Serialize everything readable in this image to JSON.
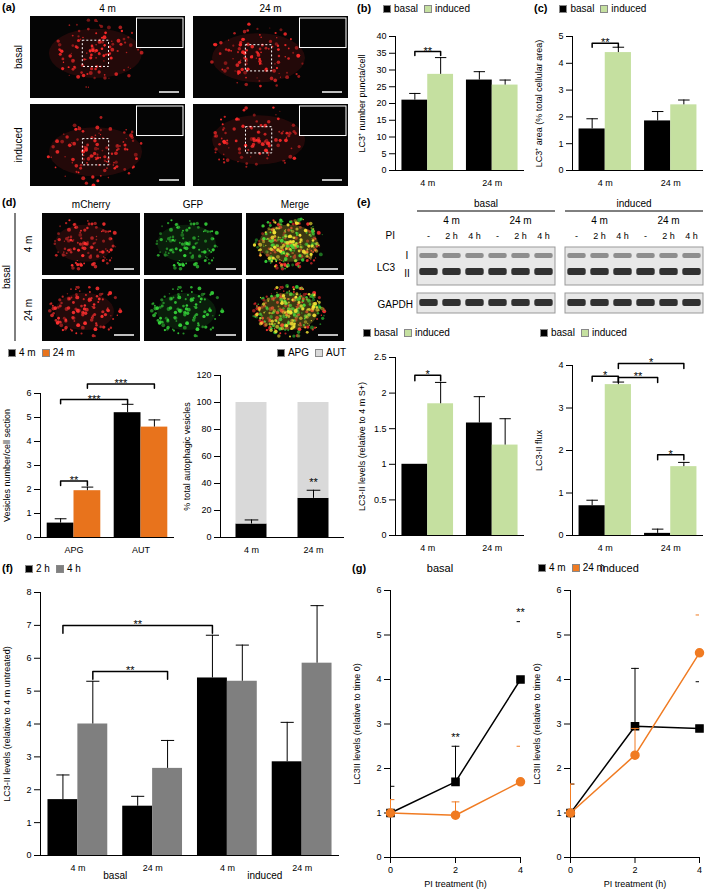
{
  "images_a": {
    "panel": "(a)",
    "columns": [
      "4 m",
      "24 m"
    ],
    "rows": [
      "basal",
      "induced"
    ]
  },
  "images_d": {
    "panel": "(d)",
    "group": "basal",
    "columns": [
      "mCherry",
      "GFP",
      "Merge"
    ],
    "rows": [
      "4 m",
      "24 m"
    ]
  },
  "blot_e": {
    "panel": "(e)",
    "groups": [
      "basal",
      "induced"
    ],
    "ages": [
      "4 m",
      "24 m"
    ],
    "pi_label": "PI",
    "lanes": [
      "-",
      "2 h",
      "4 h"
    ],
    "protein": "LC3",
    "forms": [
      "I",
      "II"
    ],
    "loading": "GAPDH"
  },
  "chart_data": [
    {
      "panel": "(b)",
      "type": "bar",
      "categories": [
        "4 m",
        "24 m"
      ],
      "series": [
        {
          "name": "basal",
          "color": "#000000",
          "values": [
            21,
            27
          ],
          "errors": [
            2,
            2.5
          ]
        },
        {
          "name": "induced",
          "color": "#c5e0a0",
          "values": [
            28.7,
            25.5
          ],
          "errors": [
            5,
            1.5
          ]
        }
      ],
      "y_label": "LC3⁺ number puncta/cell",
      "ylim": [
        0,
        40
      ],
      "yticks": [
        0,
        5,
        10,
        15,
        20,
        25,
        30,
        35,
        40
      ],
      "legend": "top-left",
      "annotations": [
        {
          "text": "**",
          "from": [
            0,
            0
          ],
          "to": [
            0,
            1
          ],
          "y": 35.5
        }
      ]
    },
    {
      "panel": "(c)",
      "type": "bar",
      "categories": [
        "4 m",
        "24 m"
      ],
      "series": [
        {
          "name": "basal",
          "color": "#000000",
          "values": [
            1.55,
            1.85
          ],
          "errors": [
            0.38,
            0.35
          ]
        },
        {
          "name": "induced",
          "color": "#c5e0a0",
          "values": [
            4.4,
            2.45
          ],
          "errors": [
            0.2,
            0.18
          ]
        }
      ],
      "y_label": "LC3⁺ area (% total cellular area)",
      "ylim": [
        0,
        5
      ],
      "yticks": [
        0,
        1,
        2,
        3,
        4,
        5
      ],
      "legend": "top-left",
      "annotations": [
        {
          "text": "**",
          "from": [
            0,
            0
          ],
          "to": [
            0,
            1
          ],
          "y": 4.75
        }
      ]
    },
    {
      "type": "bar",
      "categories": [
        "APG",
        "AUT"
      ],
      "series": [
        {
          "name": "4 m",
          "color": "#000000",
          "values": [
            0.6,
            5.2
          ],
          "errors": [
            0.18,
            0.35
          ]
        },
        {
          "name": "24 m",
          "color": "#e8731c",
          "values": [
            1.95,
            4.6
          ],
          "errors": [
            0.15,
            0.3
          ]
        }
      ],
      "y_label": "Vesicles number/cell section",
      "ylim": [
        0,
        6
      ],
      "yticks": [
        0,
        1,
        2,
        3,
        4,
        5,
        6
      ],
      "legend": "top-left",
      "annotations": [
        {
          "text": "**",
          "from": [
            0,
            0
          ],
          "to": [
            0,
            1
          ],
          "y": 2.35
        },
        {
          "text": "***",
          "from": [
            0,
            0
          ],
          "to": [
            1,
            0
          ],
          "y": 5.75
        },
        {
          "text": "***",
          "from": [
            0,
            1
          ],
          "to": [
            1,
            1
          ],
          "y": 6.4
        }
      ]
    },
    {
      "type": "bar",
      "stacked": true,
      "categories": [
        "4 m",
        "24 m"
      ],
      "series": [
        {
          "name": "APG",
          "color": "#000000",
          "values": [
            10,
            29
          ],
          "errors": [
            3,
            6
          ]
        },
        {
          "name": "AUT",
          "color": "#d9d9d9",
          "values": [
            90,
            71
          ]
        }
      ],
      "y_label": "% total autophagic vesicles",
      "ylim": [
        0,
        120
      ],
      "yticks": [
        0,
        20,
        40,
        60,
        80,
        100,
        120
      ],
      "legend": "top-right",
      "annotations": [
        {
          "text": "**",
          "at": [
            1,
            0
          ],
          "y": 41
        }
      ]
    },
    {
      "type": "bar",
      "categories": [
        "4 m",
        "24 m"
      ],
      "series": [
        {
          "name": "basal",
          "color": "#000000",
          "values": [
            1,
            1.58
          ],
          "errors": [
            0,
            0.37
          ]
        },
        {
          "name": "induced",
          "color": "#c5e0a0",
          "values": [
            1.85,
            1.27
          ],
          "errors": [
            0.3,
            0.37
          ]
        }
      ],
      "y_label": "LC3-II levels (relative to 4 m S+)",
      "ylim": [
        0,
        2.5
      ],
      "yticks": [
        0,
        0.5,
        1,
        1.5,
        2,
        2.5
      ],
      "legend": "top-left",
      "annotations": [
        {
          "text": "*",
          "from": [
            0,
            0
          ],
          "to": [
            0,
            1
          ],
          "y": 2.25
        }
      ]
    },
    {
      "type": "bar",
      "categories": [
        "4 m",
        "24 m"
      ],
      "series": [
        {
          "name": "basal",
          "color": "#000000",
          "values": [
            0.7,
            0.05
          ],
          "errors": [
            0.13,
            0.1
          ]
        },
        {
          "name": "induced",
          "color": "#c5e0a0",
          "values": [
            3.55,
            1.62
          ],
          "errors": [
            0.06,
            0.1
          ]
        }
      ],
      "y_label": "LC3-II flux",
      "ylim": [
        0,
        4
      ],
      "yticks": [
        0,
        1,
        2,
        3,
        4
      ],
      "legend": "top-left",
      "annotations": [
        {
          "text": "*",
          "from": [
            0,
            0
          ],
          "to": [
            0,
            1
          ],
          "y": 3.75
        },
        {
          "text": "**",
          "from": [
            0,
            1
          ],
          "to": [
            1,
            0
          ],
          "y": 3.72
        },
        {
          "text": "*",
          "from": [
            0,
            1
          ],
          "to": [
            1,
            1
          ],
          "y": 4.05
        },
        {
          "text": "*",
          "from": [
            1,
            0
          ],
          "to": [
            1,
            1
          ],
          "y": 1.9
        }
      ]
    },
    {
      "panel": "(f)",
      "type": "bar",
      "categories": [
        "4 m",
        "24 m",
        "4 m",
        "24 m"
      ],
      "groups": [
        "basal",
        "basal",
        "induced",
        "induced"
      ],
      "series": [
        {
          "name": "2 h",
          "color": "#000000",
          "values": [
            1.7,
            1.5,
            5.4,
            2.85
          ],
          "errors": [
            0.75,
            0.3,
            1.3,
            1.2
          ]
        },
        {
          "name": "4 h",
          "color": "#7f7f7f",
          "values": [
            4.0,
            2.65,
            5.3,
            5.85
          ],
          "errors": [
            1.3,
            0.85,
            1.1,
            1.75
          ]
        }
      ],
      "y_label": "LC3-II levels (relative to 4 m untreated)",
      "ylim": [
        0,
        8
      ],
      "yticks": [
        0,
        1,
        2,
        3,
        4,
        5,
        6,
        7,
        8
      ],
      "legend": "top-left",
      "annotations": [
        {
          "text": "**",
          "from": [
            0,
            0
          ],
          "to": [
            2,
            0
          ],
          "y": 7.0
        },
        {
          "text": "**",
          "from": [
            0,
            1
          ],
          "to": [
            1,
            1
          ],
          "y": 5.6
        }
      ]
    },
    {
      "panel": "(g)",
      "type": "line",
      "title": "basal",
      "x": [
        0,
        2,
        4
      ],
      "series": [
        {
          "name": "4 m",
          "color": "#000000",
          "marker": "square",
          "values": [
            1,
            1.7,
            4.0
          ],
          "errors": [
            0.6,
            0.8,
            1.3
          ]
        },
        {
          "name": "24 m",
          "color": "#f07b22",
          "marker": "circle",
          "values": [
            1,
            0.95,
            1.7
          ],
          "errors": [
            0.3,
            0.3,
            0.8
          ]
        }
      ],
      "x_label": "PI treatment (h)",
      "y_label": "LC3II levels (relative to time 0)",
      "xlim": [
        0,
        4
      ],
      "xticks": [
        0,
        2,
        4
      ],
      "ylim": [
        0,
        6
      ],
      "yticks": [
        0,
        1,
        2,
        3,
        4,
        5,
        6
      ],
      "annotations": [
        {
          "text": "**",
          "x": 2,
          "y": 2.7
        },
        {
          "text": "**",
          "x": 4,
          "y": 5.5
        }
      ]
    },
    {
      "type": "line",
      "title": "induced",
      "x": [
        0,
        2,
        4
      ],
      "series": [
        {
          "name": "4 m",
          "color": "#000000",
          "marker": "square",
          "values": [
            1,
            2.95,
            2.9
          ],
          "errors": [
            0.65,
            1.3,
            1.05
          ]
        },
        {
          "name": "24 m",
          "color": "#f07b22",
          "marker": "circle",
          "values": [
            1,
            2.3,
            4.6
          ],
          "errors": [
            0.65,
            0.6,
            0.85
          ]
        }
      ],
      "x_label": "PI treatment (h)",
      "y_label": "LC3II levels (relative to time 0)",
      "xlim": [
        0,
        4
      ],
      "xticks": [
        0,
        2,
        4
      ],
      "ylim": [
        0,
        6
      ],
      "yticks": [
        0,
        1,
        2,
        3,
        4,
        5,
        6
      ],
      "legend": "top-left"
    }
  ]
}
